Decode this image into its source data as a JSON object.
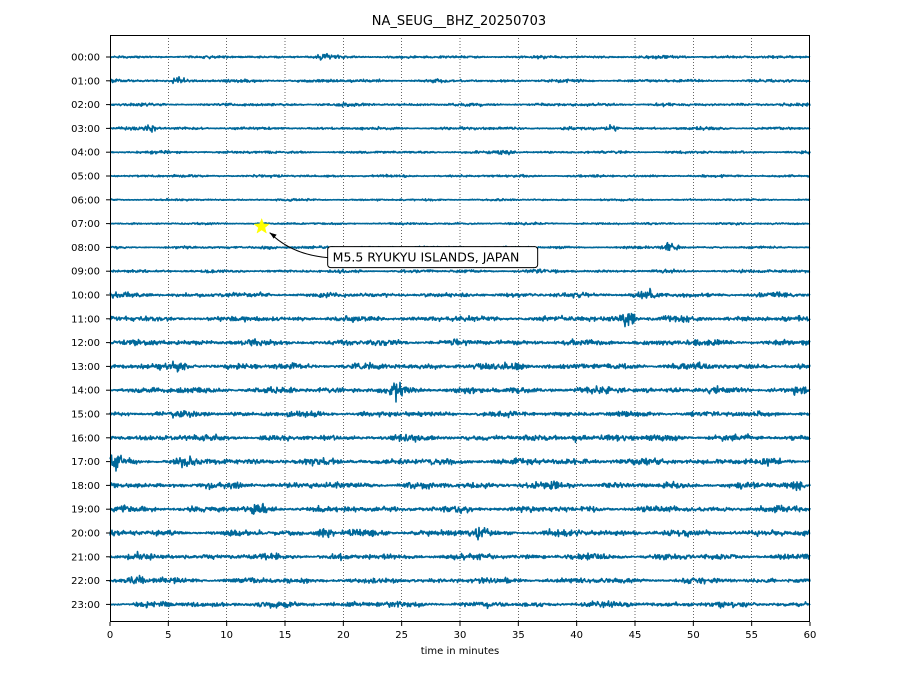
{
  "chart_data": {
    "type": "line",
    "title": "NA_SEUG__BHZ_20250703",
    "xlabel": "time in minutes",
    "ylabel": "",
    "xlim": [
      0,
      60
    ],
    "xticks": [
      0,
      5,
      10,
      15,
      20,
      25,
      30,
      35,
      40,
      45,
      50,
      55,
      60
    ],
    "grid": "vertical dotted lines every 5 minutes",
    "trace_color": "#00689a",
    "rows": [
      "00:00",
      "01:00",
      "02:00",
      "03:00",
      "04:00",
      "05:00",
      "06:00",
      "07:00",
      "08:00",
      "09:00",
      "10:00",
      "11:00",
      "12:00",
      "13:00",
      "14:00",
      "15:00",
      "16:00",
      "17:00",
      "18:00",
      "19:00",
      "20:00",
      "21:00",
      "22:00",
      "23:00"
    ],
    "event": {
      "label": "M5.5 RYUKYU ISLANDS, JAPAN",
      "row": "07:00",
      "minute": 13.0,
      "marker": "star",
      "marker_color": "#ffff00"
    }
  }
}
